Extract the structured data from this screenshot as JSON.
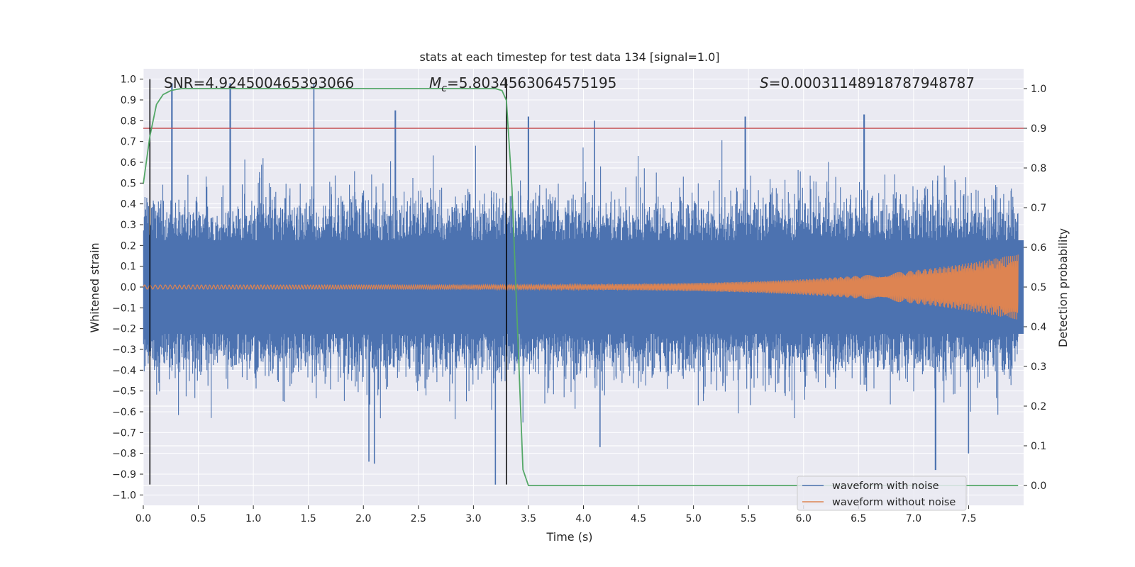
{
  "chart_data": {
    "type": "line",
    "title": "stats at each timestep for test data 134 [signal=1.0]",
    "xlabel": "Time (s)",
    "ylabel": "Whitened strain",
    "y2label": "Detection probability",
    "xlim": [
      0.0,
      8.0
    ],
    "ylim": [
      -1.05,
      1.05
    ],
    "y2lim": [
      -0.05,
      1.05
    ],
    "x_ticks": [
      "0.0",
      "0.5",
      "1.0",
      "1.5",
      "2.0",
      "2.5",
      "3.0",
      "3.5",
      "4.0",
      "4.5",
      "5.0",
      "5.5",
      "6.0",
      "6.5",
      "7.0",
      "7.5"
    ],
    "y_ticks": [
      "1.0",
      "0.9",
      "0.8",
      "0.7",
      "0.6",
      "0.5",
      "0.4",
      "0.3",
      "0.2",
      "0.1",
      "0.0",
      "−0.1",
      "−0.2",
      "−0.3",
      "−0.4",
      "−0.5",
      "−0.6",
      "−0.7",
      "−0.8",
      "−0.9",
      "−1.0"
    ],
    "y2_ticks": [
      "1.0",
      "0.9",
      "0.8",
      "0.7",
      "0.6",
      "0.5",
      "0.4",
      "0.3",
      "0.2",
      "0.1",
      "0.0"
    ],
    "grid": true,
    "legend_position": "bottom-right",
    "annotations": {
      "snr": "SNR=4.924500465393066",
      "mc_symbol": "M",
      "mc_subscript": "c",
      "mc_value": "=5.8034563064575195",
      "s_symbol": "S",
      "s_value": "=0.00031148918787948787"
    },
    "series": [
      {
        "name": "waveform with noise",
        "color": "#4c72b0",
        "axis": "left",
        "envelope_hint": {
          "typical_abs": 0.3,
          "max": 0.98,
          "min": -0.95
        }
      },
      {
        "name": "waveform without noise",
        "color": "#dd8452",
        "axis": "left",
        "envelope_hint": {
          "start_amp": 0.01,
          "end_amp": 0.16,
          "end_time": 7.95
        }
      },
      {
        "name": "",
        "color": "#55a868",
        "axis": "right",
        "x": [
          0.0,
          0.06,
          0.12,
          0.18,
          0.25,
          0.3,
          0.35,
          0.4,
          0.5,
          1.0,
          2.0,
          3.0,
          3.2,
          3.26,
          3.3,
          3.35,
          3.4,
          3.45,
          3.5,
          4.0,
          5.0,
          6.0,
          7.0,
          7.95
        ],
        "values": [
          0.76,
          0.88,
          0.96,
          0.985,
          0.995,
          0.998,
          1.0,
          1.0,
          1.0,
          1.0,
          1.0,
          1.0,
          1.0,
          0.995,
          0.97,
          0.75,
          0.4,
          0.04,
          0.0,
          0.0,
          0.0,
          0.0,
          0.0,
          0.0
        ]
      }
    ],
    "hlines": [
      {
        "axis": "right",
        "value": 0.9,
        "color": "#c44e52"
      }
    ],
    "vlines": [
      {
        "x": 0.06,
        "color": "#000000"
      },
      {
        "x": 3.3,
        "color": "#000000"
      }
    ]
  }
}
